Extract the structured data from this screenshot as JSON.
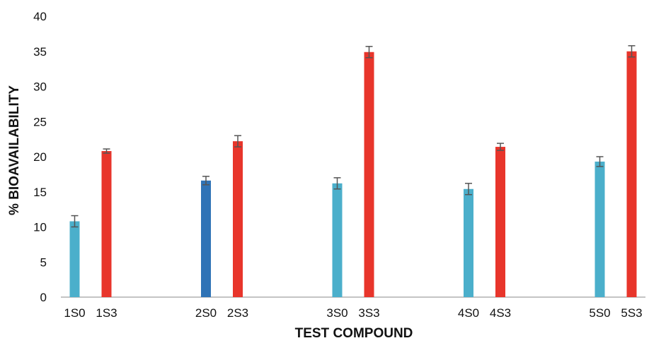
{
  "chart_data": {
    "type": "bar",
    "title": "",
    "xlabel": "TEST COMPOUND",
    "ylabel": "% BIOAVAILABILITY",
    "ylim": [
      0,
      40
    ],
    "yticks": [
      0,
      5,
      10,
      15,
      20,
      25,
      30,
      35,
      40
    ],
    "grid": false,
    "legend": "none",
    "categories": [
      "1S0",
      "1S3",
      "2S0",
      "2S3",
      "3S0",
      "3S3",
      "4S0",
      "4S3",
      "5S0",
      "5S3"
    ],
    "values": [
      10.8,
      20.8,
      16.6,
      22.2,
      16.2,
      34.9,
      15.4,
      21.4,
      19.3,
      35.0
    ],
    "errors": [
      0.8,
      0.3,
      0.6,
      0.8,
      0.8,
      0.8,
      0.8,
      0.5,
      0.7,
      0.8
    ],
    "bar_colors": [
      "#4BAFCB",
      "#E8352B",
      "#2F73B6",
      "#E8352B",
      "#4BAFCB",
      "#E8352B",
      "#4BAFCB",
      "#E8352B",
      "#4BAFCB",
      "#E8352B"
    ],
    "error_bar_color": "#555555"
  }
}
